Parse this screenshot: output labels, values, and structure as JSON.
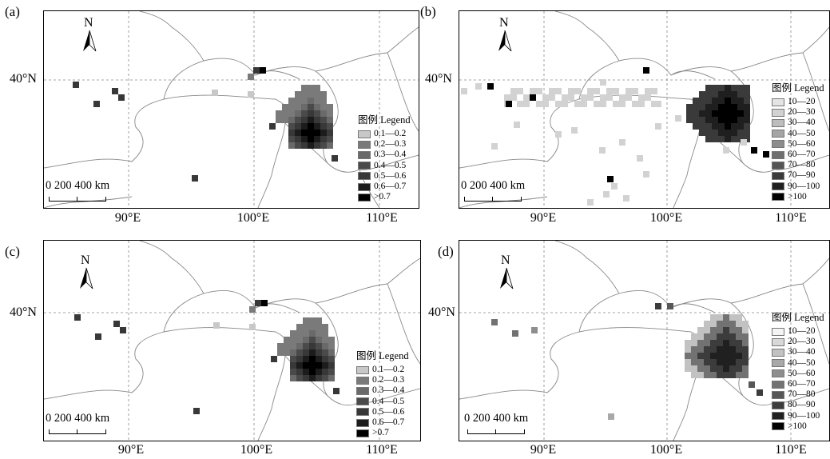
{
  "panels": [
    {
      "id": "a",
      "label": "(a)",
      "north": "N",
      "lat_label": "40°N",
      "lon_labels": [
        "90°E",
        "100°E",
        "110°E"
      ],
      "scale_text": "0  200  400 km",
      "legend_title": "图例 Legend",
      "legend_items": [
        {
          "label": "0.1—0.2",
          "color": "#c8c8c8"
        },
        {
          "label": "0.2—0.3",
          "color": "#7a7a7a"
        },
        {
          "label": "0.3—0.4",
          "color": "#6a6a6a"
        },
        {
          "label": "0.4—0.5",
          "color": "#4a4a4a"
        },
        {
          "label": "0.5—0.6",
          "color": "#383838"
        },
        {
          "label": "0.6—0.7",
          "color": "#1c1c1c"
        },
        {
          "label": ">0.7",
          "color": "#000000"
        }
      ]
    },
    {
      "id": "b",
      "label": "(b)",
      "north": "N",
      "lat_label": "40°N",
      "lon_labels": [
        "90°E",
        "100°E",
        "110°E"
      ],
      "scale_text": "0  200  400 km",
      "legend_title": "图例 Legend",
      "legend_items": [
        {
          "label": "10—20",
          "color": "#e4e4e4"
        },
        {
          "label": "20—30",
          "color": "#d2d2d2"
        },
        {
          "label": "30—40",
          "color": "#bdbdbd"
        },
        {
          "label": "40—50",
          "color": "#a5a5a5"
        },
        {
          "label": "50—60",
          "color": "#8c8c8c"
        },
        {
          "label": "60—70",
          "color": "#707070"
        },
        {
          "label": "70—80",
          "color": "#555555"
        },
        {
          "label": "70—90",
          "color": "#3a3a3a"
        },
        {
          "label": "90—100",
          "color": "#1f1f1f"
        },
        {
          "label": ">100",
          "color": "#000000"
        }
      ]
    },
    {
      "id": "c",
      "label": "(c)",
      "north": "N",
      "lat_label": "40°N",
      "lon_labels": [
        "90°E",
        "100°E",
        "110°E"
      ],
      "scale_text": "0  200  400 km",
      "legend_title": "图例 Legend",
      "legend_items": [
        {
          "label": "0.1—0.2",
          "color": "#c8c8c8"
        },
        {
          "label": "0.2—0.3",
          "color": "#7a7a7a"
        },
        {
          "label": "0.3—0.4",
          "color": "#6a6a6a"
        },
        {
          "label": "0.4—0.5",
          "color": "#4a4a4a"
        },
        {
          "label": "0.5—0.6",
          "color": "#383838"
        },
        {
          "label": "0.6—0.7",
          "color": "#1c1c1c"
        },
        {
          "label": ">0.7",
          "color": "#000000"
        }
      ]
    },
    {
      "id": "d",
      "label": "(d)",
      "north": "N",
      "lat_label": "40°N",
      "lon_labels": [
        "90°E",
        "100°E",
        "110°E"
      ],
      "scale_text": "0  200  400 km",
      "legend_title": "图例 Legend",
      "legend_items": [
        {
          "label": "10—20",
          "color": "#f4f4f4"
        },
        {
          "label": "20—30",
          "color": "#d8d8d8"
        },
        {
          "label": "30—40",
          "color": "#c2c2c2"
        },
        {
          "label": "40—50",
          "color": "#a8a8a8"
        },
        {
          "label": "50—60",
          "color": "#8e8e8e"
        },
        {
          "label": "60—70",
          "color": "#727272"
        },
        {
          "label": "70—80",
          "color": "#575757"
        },
        {
          "label": "80—90",
          "color": "#3c3c3c"
        },
        {
          "label": "90—100",
          "color": "#202020"
        },
        {
          "label": ">100",
          "color": "#000000"
        }
      ]
    }
  ]
}
